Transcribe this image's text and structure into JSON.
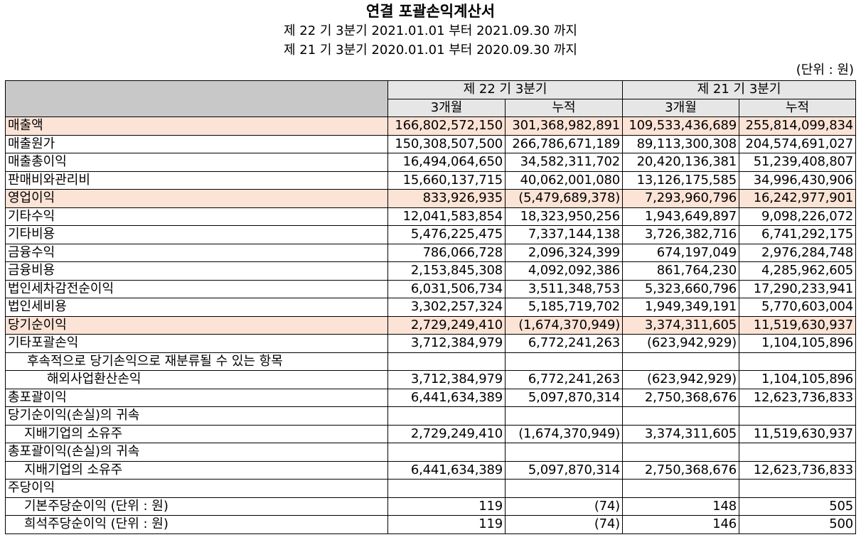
{
  "doc": {
    "title": "연결 포괄손익계산서",
    "period_current": "제 22 기 3분기 2021.01.01 부터 2021.09.30 까지",
    "period_prior": "제 21 기 3분기 2020.01.01 부터 2020.09.30 까지",
    "unit": "(단위 : 원)"
  },
  "header": {
    "group_current": "제 22 기 3분기",
    "group_prior": "제 21 기 3분기",
    "sub": [
      "3개월",
      "누적",
      "3개월",
      "누적"
    ]
  },
  "rows": [
    {
      "label": "매출액",
      "values": [
        "166,802,572,150",
        "301,368,982,891",
        "109,533,436,689",
        "255,814,099,834"
      ]
    },
    {
      "label": "매출원가",
      "values": [
        "150,308,507,500",
        "266,786,671,189",
        "89,113,300,308",
        "204,574,691,027"
      ]
    },
    {
      "label": "매출총이익",
      "values": [
        "16,494,064,650",
        "34,582,311,702",
        "20,420,136,381",
        "51,239,408,807"
      ]
    },
    {
      "label": "판매비와관리비",
      "values": [
        "15,660,137,715",
        "40,062,001,080",
        "13,126,175,585",
        "34,996,430,906"
      ]
    },
    {
      "label": "영업이익",
      "values": [
        "833,926,935",
        "(5,479,689,378)",
        "7,293,960,796",
        "16,242,977,901"
      ]
    },
    {
      "label": "기타수익",
      "values": [
        "12,041,583,854",
        "18,323,950,256",
        "1,943,649,897",
        "9,098,226,072"
      ]
    },
    {
      "label": "기타비용",
      "values": [
        "5,476,225,475",
        "7,337,144,138",
        "3,726,382,716",
        "6,741,292,175"
      ]
    },
    {
      "label": "금융수익",
      "values": [
        "786,066,728",
        "2,096,324,399",
        "674,197,049",
        "2,976,284,748"
      ]
    },
    {
      "label": "금융비용",
      "values": [
        "2,153,845,308",
        "4,092,092,386",
        "861,764,230",
        "4,285,962,605"
      ]
    },
    {
      "label": "법인세차감전순이익",
      "values": [
        "6,031,506,734",
        "3,511,348,753",
        "5,323,660,796",
        "17,290,233,941"
      ]
    },
    {
      "label": "법인세비용",
      "values": [
        "3,302,257,324",
        "5,185,719,702",
        "1,949,349,191",
        "5,770,603,004"
      ]
    },
    {
      "label": "당기순이익",
      "values": [
        "2,729,249,410",
        "(1,674,370,949)",
        "3,374,311,605",
        "11,519,630,937"
      ]
    },
    {
      "label": "기타포괄손익",
      "values": [
        "3,712,384,979",
        "6,772,241,263",
        "(623,942,929)",
        "1,104,105,896"
      ]
    },
    {
      "label": "후속적으로 당기손익으로 재분류될 수 있는 항목",
      "values": [
        "",
        "",
        "",
        ""
      ]
    },
    {
      "label": "해외사업환산손익",
      "values": [
        "3,712,384,979",
        "6,772,241,263",
        "(623,942,929)",
        "1,104,105,896"
      ]
    },
    {
      "label": "총포괄이익",
      "values": [
        "6,441,634,389",
        "5,097,870,314",
        "2,750,368,676",
        "12,623,736,833"
      ]
    },
    {
      "label": "당기순이익(손실)의 귀속",
      "values": [
        "",
        "",
        "",
        ""
      ]
    },
    {
      "label": "지배기업의 소유주",
      "values": [
        "2,729,249,410",
        "(1,674,370,949)",
        "3,374,311,605",
        "11,519,630,937"
      ]
    },
    {
      "label": "총포괄이익(손실)의 귀속",
      "values": [
        "",
        "",
        "",
        ""
      ]
    },
    {
      "label": "지배기업의 소유주",
      "values": [
        "6,441,634,389",
        "5,097,870,314",
        "2,750,368,676",
        "12,623,736,833"
      ]
    },
    {
      "label": "주당이익",
      "values": [
        "",
        "",
        "",
        ""
      ]
    },
    {
      "label": "기본주당순이익 (단위 : 원)",
      "values": [
        "119",
        "(74)",
        "148",
        "505"
      ]
    },
    {
      "label": "희석주당순이익 (단위 : 원)",
      "values": [
        "119",
        "(74)",
        "146",
        "500"
      ]
    }
  ]
}
